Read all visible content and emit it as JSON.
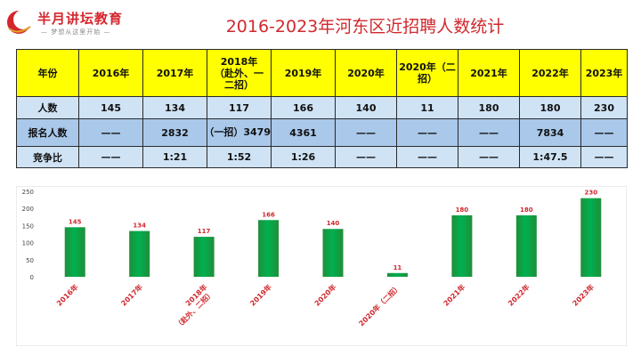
{
  "logo": {
    "name": "半月讲坛教育",
    "slogan": "— 梦想从这里开始 —",
    "brand_color": "#d4262d"
  },
  "title": "2016-2023年河东区近招聘人数统计",
  "table": {
    "row_labels": [
      "年份",
      "人数",
      "报名人数",
      "竞争比"
    ],
    "headers": [
      "2016年",
      "2017年",
      "2018年（赴外、一二招）",
      "2019年",
      "2020年",
      "2020年（二招）",
      "2021年",
      "2022年",
      "2023年"
    ],
    "header_display": [
      [
        "2016年"
      ],
      [
        "2017年"
      ],
      [
        "2018年",
        "（赴外、一",
        "二招）"
      ],
      [
        "2019年"
      ],
      [
        "2020年"
      ],
      [
        "2020年（二",
        "招）"
      ],
      [
        "2021年"
      ],
      [
        "2022年"
      ],
      [
        "2023年"
      ]
    ],
    "counts": [
      "145",
      "134",
      "117",
      "166",
      "140",
      "11",
      "180",
      "180",
      "230"
    ],
    "applicants": [
      "——",
      "2832",
      "3479（一招）",
      "4361",
      "——",
      "——",
      "——",
      "7834",
      "——"
    ],
    "ratios": [
      "——",
      "1:21",
      "1:52",
      "1:26",
      "——",
      "——",
      "——",
      "1:47.5",
      "——"
    ],
    "colors": {
      "header_bg": "#ffff00",
      "row_light": "#cfe3f5",
      "row_dark": "#a9c8ea"
    }
  },
  "chart_data": {
    "type": "bar",
    "categories": [
      "2016年",
      "2017年",
      "2018年（赴外、二招）",
      "2019年",
      "2020年",
      "2020年（二招）",
      "2021年",
      "2022年",
      "2023年"
    ],
    "category_lines": [
      [
        "2016年"
      ],
      [
        "2017年"
      ],
      [
        "2018年",
        "（赴外、二招）"
      ],
      [
        "2019年"
      ],
      [
        "2020年"
      ],
      [
        "2020年（二招）"
      ],
      [
        "2021年"
      ],
      [
        "2022年"
      ],
      [
        "2023年"
      ]
    ],
    "values": [
      145,
      134,
      117,
      166,
      140,
      11,
      180,
      180,
      230
    ],
    "ylim": [
      0,
      250
    ],
    "yticks": [
      0,
      50,
      100,
      150,
      200,
      250
    ],
    "title": "",
    "xlabel": "",
    "ylabel": "",
    "grid": false,
    "legend": false,
    "colors": {
      "bar_top": "#00b050",
      "bar_bottom": "#1f8f3a",
      "label": "#d0282e",
      "tick_label": "#d0282e",
      "axis_text": "#444444"
    }
  }
}
